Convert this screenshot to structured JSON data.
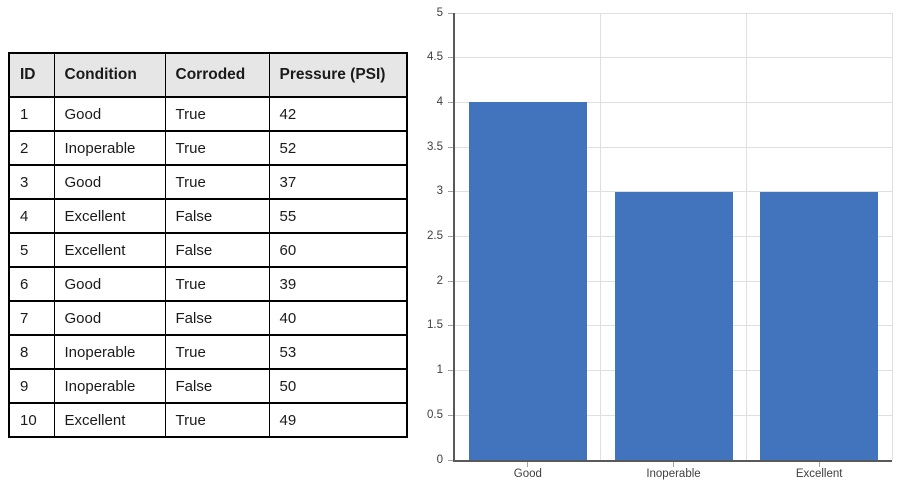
{
  "table": {
    "columns": [
      "ID",
      "Condition",
      "Corroded",
      "Pressure (PSI)"
    ],
    "rows": [
      [
        "1",
        "Good",
        "True",
        "42"
      ],
      [
        "2",
        "Inoperable",
        "True",
        "52"
      ],
      [
        "3",
        "Good",
        "True",
        "37"
      ],
      [
        "4",
        "Excellent",
        "False",
        "55"
      ],
      [
        "5",
        "Excellent",
        "False",
        "60"
      ],
      [
        "6",
        "Good",
        "True",
        "39"
      ],
      [
        "7",
        "Good",
        "False",
        "40"
      ],
      [
        "8",
        "Inoperable",
        "True",
        "53"
      ],
      [
        "9",
        "Inoperable",
        "False",
        "50"
      ],
      [
        "10",
        "Excellent",
        "True",
        "49"
      ]
    ]
  },
  "chart_data": {
    "type": "bar",
    "title": "",
    "xlabel": "",
    "ylabel": "",
    "categories": [
      "Good",
      "Inoperable",
      "Excellent"
    ],
    "values": [
      4,
      3,
      3
    ],
    "ylim": [
      0,
      5
    ],
    "ytick_step": 0.5,
    "ytick_labels": [
      "0",
      "0.5",
      "1",
      "1.5",
      "2",
      "2.5",
      "3",
      "3.5",
      "4",
      "4.5",
      "5"
    ],
    "grid": true,
    "legend": "none",
    "colors": {
      "bar": "#4273BD",
      "gridline": "#DFDFDF",
      "axis": "#595959",
      "tick": "#A3A3A3",
      "label": "#404040",
      "table_header_bg": "#E7E6E6",
      "table_border": "#000000"
    }
  }
}
